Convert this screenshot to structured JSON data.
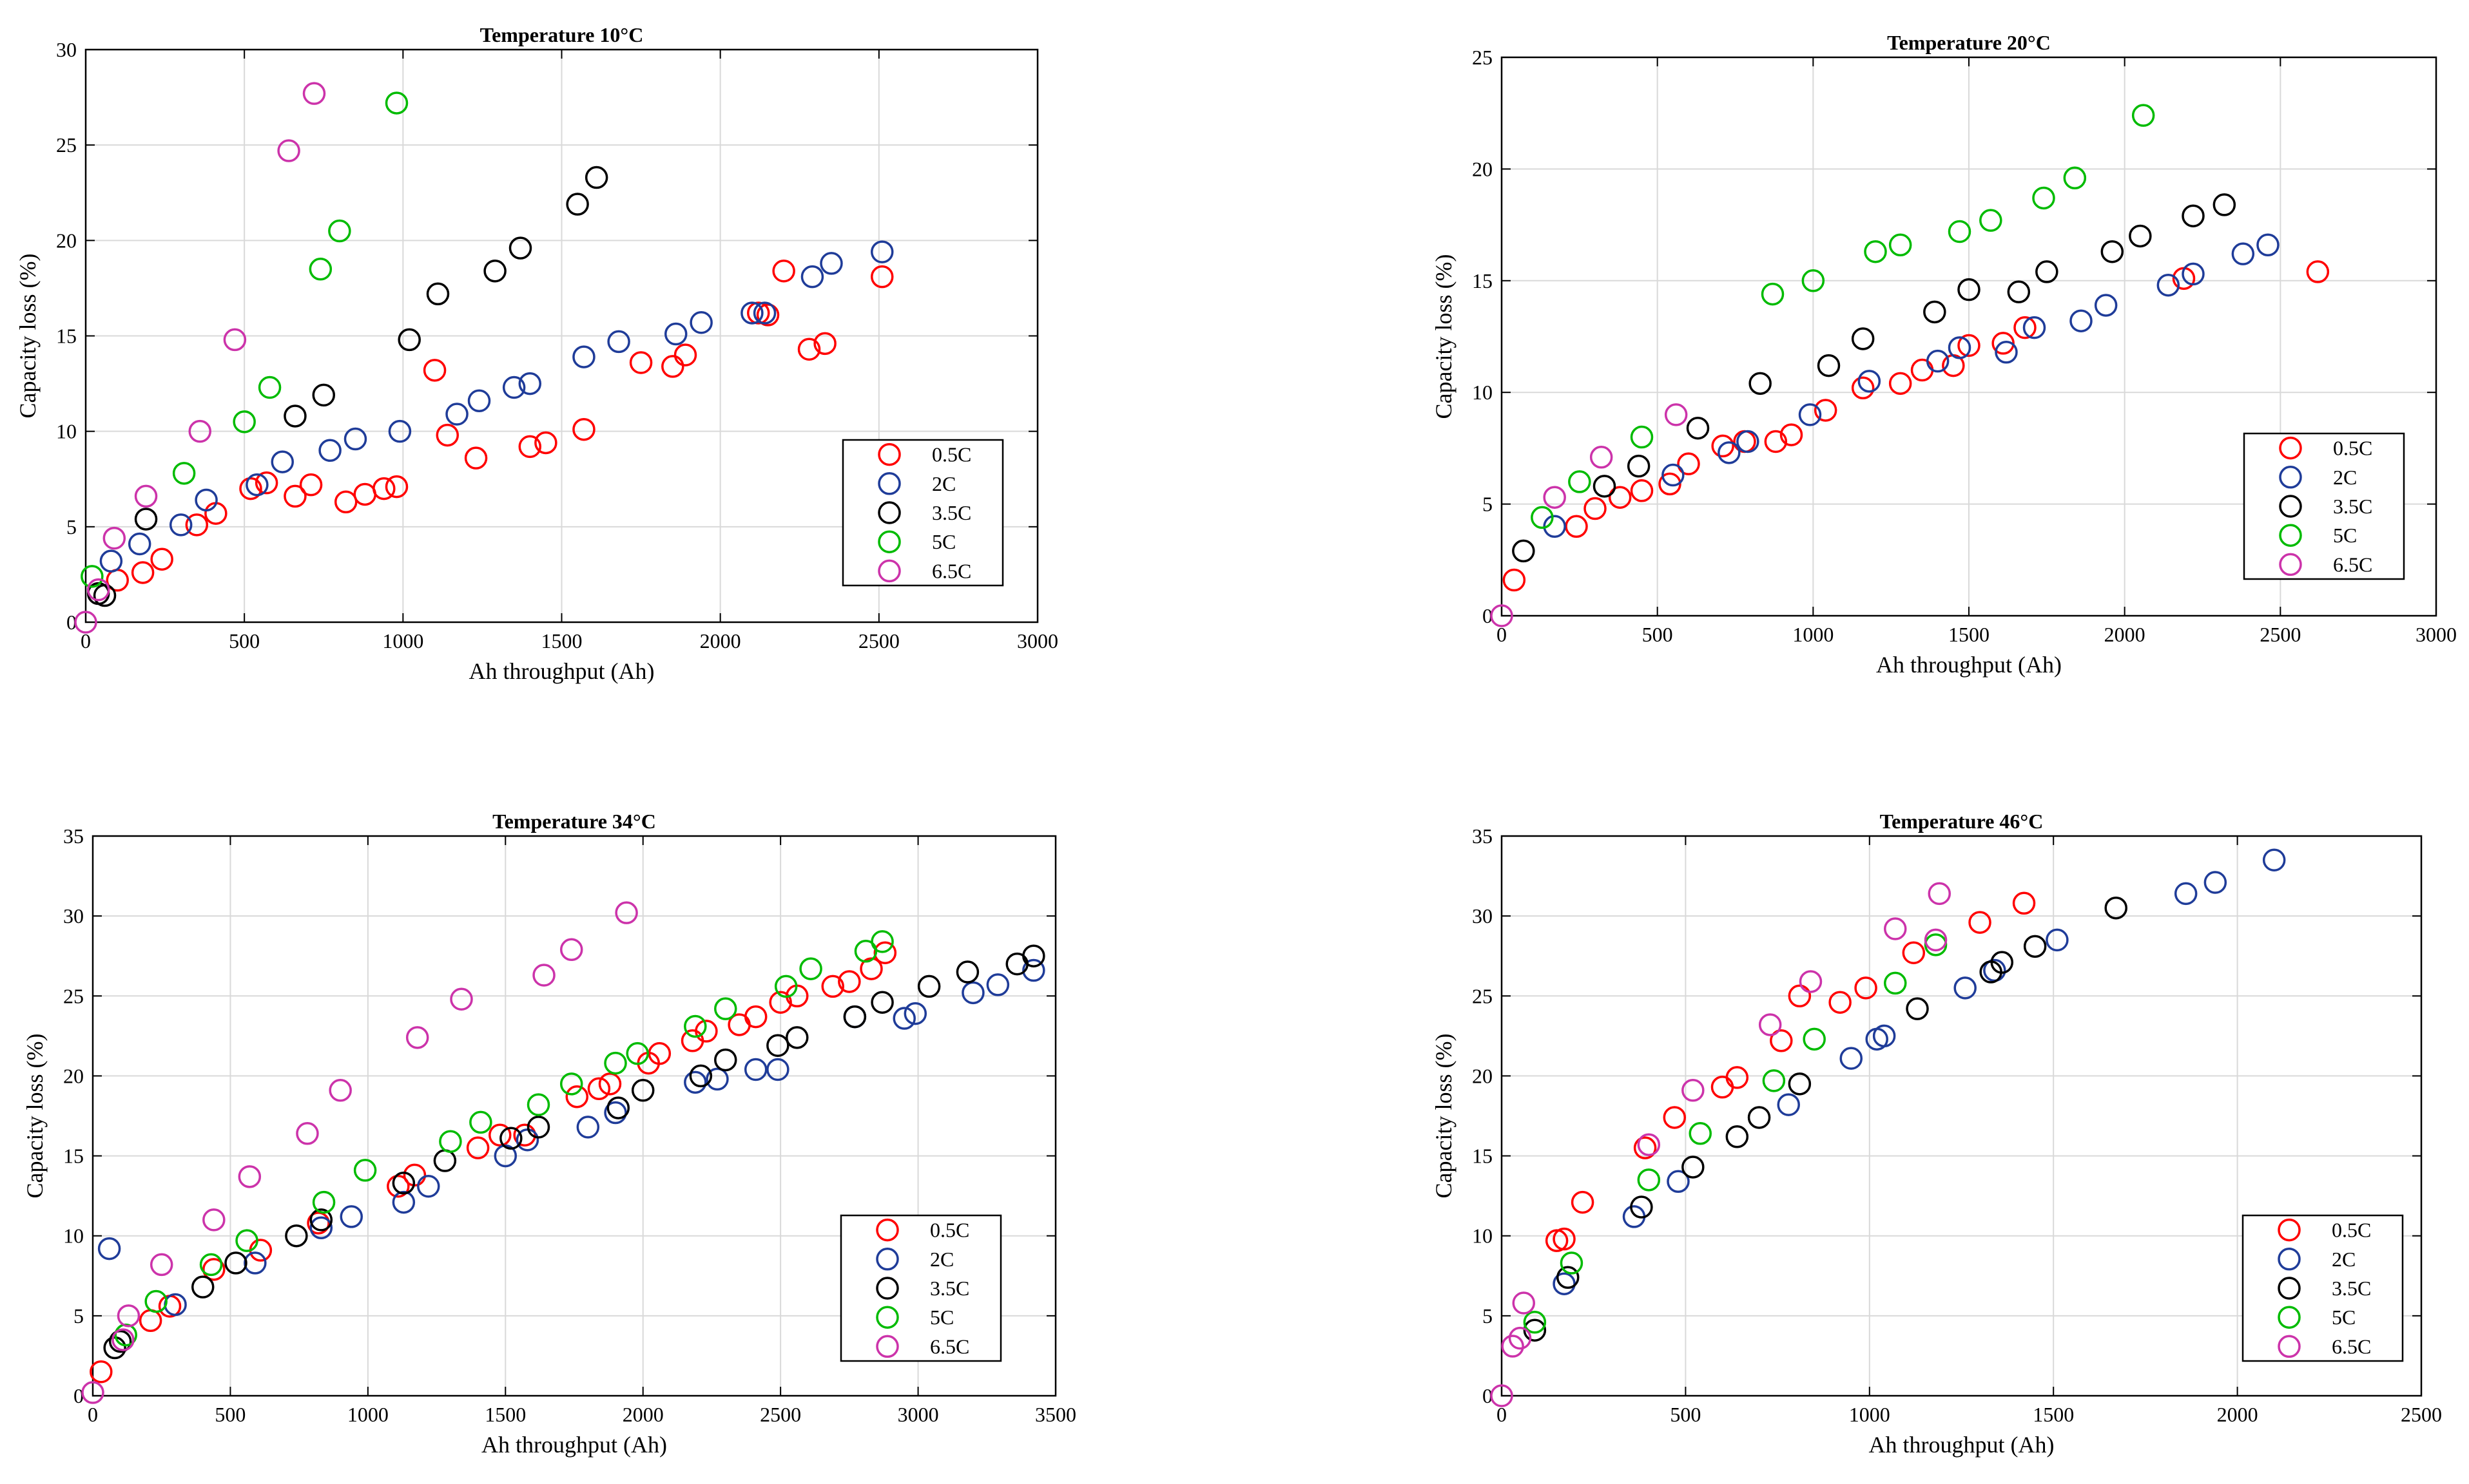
{
  "chart_data": [
    {
      "type": "scatter",
      "title": "Temperature 10°C",
      "xlabel": "Ah throughput (Ah)",
      "ylabel": "Capacity loss (%)",
      "xlim": [
        0,
        3000
      ],
      "ylim": [
        0,
        30
      ],
      "xticks": [
        0,
        500,
        1000,
        1500,
        2000,
        2500,
        3000
      ],
      "yticks": [
        0,
        5,
        10,
        15,
        20,
        25,
        30
      ],
      "grid": true,
      "legend_position": "bottom-right",
      "series": [
        {
          "name": "0.5C",
          "color": "#ff0000",
          "x": [
            100,
            180,
            240,
            350,
            410,
            520,
            570,
            660,
            710,
            820,
            880,
            940,
            980,
            1100,
            1140,
            1230,
            1400,
            1450,
            1570,
            1750,
            1850,
            1890,
            2120,
            2150,
            2200,
            2280,
            2330,
            2510
          ],
          "y": [
            2.2,
            2.6,
            3.3,
            5.1,
            5.7,
            7.0,
            7.3,
            6.6,
            7.2,
            6.3,
            6.7,
            7.0,
            7.1,
            13.2,
            9.8,
            8.6,
            9.2,
            9.4,
            10.1,
            13.6,
            13.4,
            14.0,
            16.2,
            16.1,
            18.4,
            14.3,
            14.6,
            18.1
          ]
        },
        {
          "name": "2C",
          "color": "#1f3c99",
          "x": [
            80,
            170,
            300,
            380,
            540,
            620,
            770,
            850,
            990,
            1170,
            1240,
            1350,
            1400,
            1570,
            1680,
            1860,
            1940,
            2100,
            2140,
            2290,
            2350,
            2510
          ],
          "y": [
            3.2,
            4.1,
            5.1,
            6.4,
            7.2,
            8.4,
            9.0,
            9.6,
            10.0,
            10.9,
            11.6,
            12.3,
            12.5,
            13.9,
            14.7,
            15.1,
            15.7,
            16.2,
            16.2,
            18.1,
            18.8,
            19.4
          ]
        },
        {
          "name": "3.5C",
          "color": "#000000",
          "x": [
            40,
            60,
            190,
            660,
            750,
            1020,
            1110,
            1290,
            1370,
            1550,
            1610
          ],
          "y": [
            1.5,
            1.4,
            5.4,
            10.8,
            11.9,
            14.8,
            17.2,
            18.4,
            19.6,
            21.9,
            23.3
          ]
        },
        {
          "name": "5C",
          "color": "#00bb00",
          "x": [
            20,
            310,
            500,
            580,
            740,
            800,
            980
          ],
          "y": [
            2.4,
            7.8,
            10.5,
            12.3,
            18.5,
            20.5,
            27.2
          ]
        },
        {
          "name": "6.5C",
          "color": "#cc33aa",
          "x": [
            0,
            40,
            90,
            190,
            360,
            470,
            640,
            720
          ],
          "y": [
            0.0,
            1.7,
            4.4,
            6.6,
            10.0,
            14.8,
            24.7,
            27.7
          ]
        }
      ]
    },
    {
      "type": "scatter",
      "title": "Temperature 20°C",
      "xlabel": "Ah throughput (Ah)",
      "ylabel": "Capacity loss (%)",
      "xlim": [
        0,
        3000
      ],
      "ylim": [
        0,
        25
      ],
      "xticks": [
        0,
        500,
        1000,
        1500,
        2000,
        2500,
        3000
      ],
      "yticks": [
        0,
        5,
        10,
        15,
        20,
        25
      ],
      "grid": true,
      "legend_position": "bottom-right",
      "series": [
        {
          "name": "0.5C",
          "color": "#ff0000",
          "x": [
            40,
            240,
            300,
            380,
            450,
            540,
            600,
            710,
            780,
            880,
            930,
            1040,
            1160,
            1280,
            1350,
            1450,
            1500,
            1610,
            1680,
            2190,
            2620
          ],
          "y": [
            1.6,
            4.0,
            4.8,
            5.3,
            5.6,
            5.9,
            6.8,
            7.6,
            7.8,
            7.8,
            8.1,
            9.2,
            10.2,
            10.4,
            11.0,
            11.2,
            12.1,
            12.2,
            12.9,
            15.1,
            15.4
          ]
        },
        {
          "name": "2C",
          "color": "#1f3c99",
          "x": [
            170,
            550,
            730,
            790,
            990,
            1180,
            1400,
            1470,
            1620,
            1710,
            1860,
            1940,
            2140,
            2220,
            2380,
            2460
          ],
          "y": [
            4.0,
            6.3,
            7.3,
            7.8,
            9.0,
            10.5,
            11.4,
            12.0,
            11.8,
            12.9,
            13.2,
            13.9,
            14.8,
            15.3,
            16.2,
            16.6
          ]
        },
        {
          "name": "3.5C",
          "color": "#000000",
          "x": [
            70,
            330,
            440,
            630,
            830,
            1050,
            1160,
            1390,
            1500,
            1660,
            1750,
            1960,
            2050,
            2220,
            2320
          ],
          "y": [
            2.9,
            5.8,
            6.7,
            8.4,
            10.4,
            11.2,
            12.4,
            13.6,
            14.6,
            14.5,
            15.4,
            16.3,
            17.0,
            17.9,
            18.4
          ]
        },
        {
          "name": "5C",
          "color": "#00bb00",
          "x": [
            130,
            250,
            450,
            870,
            1000,
            1200,
            1280,
            1470,
            1570,
            1740,
            1840,
            2060
          ],
          "y": [
            4.4,
            6.0,
            8.0,
            14.4,
            15.0,
            16.3,
            16.6,
            17.2,
            17.7,
            18.7,
            19.6,
            22.4
          ]
        },
        {
          "name": "6.5C",
          "color": "#cc33aa",
          "x": [
            0,
            170,
            320,
            560
          ],
          "y": [
            0.0,
            5.3,
            7.1,
            9.0
          ]
        }
      ]
    },
    {
      "type": "scatter",
      "title": "Temperature 34°C",
      "xlabel": "Ah throughput (Ah)",
      "ylabel": "Capacity loss (%)",
      "xlim": [
        0,
        3500
      ],
      "ylim": [
        0,
        35
      ],
      "xticks": [
        0,
        500,
        1000,
        1500,
        2000,
        2500,
        3000,
        3500
      ],
      "yticks": [
        0,
        5,
        10,
        15,
        20,
        25,
        30,
        35
      ],
      "grid": true,
      "legend_position": "bottom-right",
      "series": [
        {
          "name": "0.5C",
          "color": "#ff0000",
          "x": [
            30,
            210,
            280,
            440,
            610,
            820,
            1110,
            1170,
            1400,
            1480,
            1570,
            1760,
            1840,
            1880,
            2020,
            2060,
            2180,
            2230,
            2350,
            2410,
            2500,
            2560,
            2690,
            2750,
            2830,
            2880
          ],
          "y": [
            1.5,
            4.7,
            5.6,
            7.9,
            9.1,
            10.8,
            13.1,
            13.8,
            15.5,
            16.3,
            16.3,
            18.7,
            19.2,
            19.5,
            20.8,
            21.4,
            22.2,
            22.8,
            23.2,
            23.7,
            24.6,
            25.0,
            25.6,
            25.9,
            26.7,
            27.7
          ]
        },
        {
          "name": "2C",
          "color": "#1f3c99",
          "x": [
            60,
            300,
            590,
            830,
            940,
            1130,
            1220,
            1500,
            1580,
            1800,
            1900,
            2190,
            2270,
            2410,
            2490,
            2770,
            2950,
            2990,
            3200,
            3290,
            3420
          ],
          "y": [
            9.2,
            5.7,
            8.3,
            10.5,
            11.2,
            12.1,
            13.1,
            15.0,
            16.0,
            16.8,
            17.7,
            19.6,
            19.8,
            20.4,
            20.4,
            23.7,
            23.6,
            23.9,
            25.2,
            25.7,
            26.6
          ]
        },
        {
          "name": "3.5C",
          "color": "#000000",
          "x": [
            80,
            100,
            400,
            520,
            740,
            830,
            1130,
            1280,
            1520,
            1620,
            1910,
            2000,
            2210,
            2300,
            2490,
            2560,
            2770,
            2870,
            3040,
            3180,
            3360,
            3420
          ],
          "y": [
            3.0,
            3.4,
            6.8,
            8.3,
            10.0,
            11.0,
            13.3,
            14.7,
            16.1,
            16.8,
            18.0,
            19.1,
            20.0,
            21.0,
            21.9,
            22.4,
            23.7,
            24.6,
            25.6,
            26.5,
            27.0,
            27.5
          ]
        },
        {
          "name": "5C",
          "color": "#00bb00",
          "x": [
            120,
            230,
            430,
            560,
            840,
            990,
            1300,
            1410,
            1620,
            1740,
            1900,
            1980,
            2190,
            2300,
            2520,
            2610,
            2810,
            2870
          ],
          "y": [
            3.8,
            5.9,
            8.2,
            9.7,
            12.1,
            14.1,
            15.9,
            17.1,
            18.2,
            19.5,
            20.8,
            21.4,
            23.1,
            24.2,
            25.6,
            26.7,
            27.8,
            28.4
          ]
        },
        {
          "name": "6.5C",
          "color": "#cc33aa",
          "x": [
            0,
            110,
            130,
            250,
            440,
            570,
            780,
            900,
            1180,
            1340,
            1640,
            1740,
            1940
          ],
          "y": [
            0.2,
            3.5,
            5.0,
            8.2,
            11.0,
            13.7,
            16.4,
            19.1,
            22.4,
            24.8,
            26.3,
            27.9,
            30.2
          ]
        }
      ]
    },
    {
      "type": "scatter",
      "title": "Temperature 46°C",
      "xlabel": "Ah throughput (Ah)",
      "ylabel": "Capacity loss (%)",
      "xlim": [
        0,
        2500
      ],
      "ylim": [
        0,
        35
      ],
      "xticks": [
        0,
        500,
        1000,
        1500,
        2000,
        2500
      ],
      "yticks": [
        0,
        5,
        10,
        15,
        20,
        25,
        30,
        35
      ],
      "grid": true,
      "legend_position": "bottom-right",
      "series": [
        {
          "name": "0.5C",
          "color": "#ff0000",
          "x": [
            150,
            170,
            220,
            390,
            470,
            600,
            640,
            760,
            810,
            920,
            990,
            1120,
            1300,
            1420
          ],
          "y": [
            9.7,
            9.8,
            12.1,
            15.5,
            17.4,
            19.3,
            19.9,
            22.2,
            25.0,
            24.6,
            25.5,
            27.7,
            29.6,
            30.8
          ]
        },
        {
          "name": "2C",
          "color": "#1f3c99",
          "x": [
            170,
            360,
            480,
            780,
            950,
            1020,
            1040,
            1260,
            1340,
            1510,
            1860,
            1940,
            2100
          ],
          "y": [
            7.0,
            11.2,
            13.4,
            18.2,
            21.1,
            22.3,
            22.5,
            25.5,
            26.6,
            28.5,
            31.4,
            32.1,
            33.5
          ]
        },
        {
          "name": "3.5C",
          "color": "#000000",
          "x": [
            90,
            180,
            380,
            520,
            640,
            700,
            810,
            1130,
            1330,
            1360,
            1450,
            1670
          ],
          "y": [
            4.1,
            7.4,
            11.8,
            14.3,
            16.2,
            17.4,
            19.5,
            24.2,
            26.5,
            27.1,
            28.1,
            30.5
          ]
        },
        {
          "name": "5C",
          "color": "#00bb00",
          "x": [
            90,
            190,
            400,
            540,
            740,
            850,
            1070,
            1180
          ],
          "y": [
            4.6,
            8.3,
            13.5,
            16.4,
            19.7,
            22.3,
            25.8,
            28.2
          ]
        },
        {
          "name": "6.5C",
          "color": "#cc33aa",
          "x": [
            0,
            30,
            50,
            60,
            400,
            520,
            730,
            840,
            1070,
            1180,
            1190
          ],
          "y": [
            0.0,
            3.1,
            3.6,
            5.8,
            15.7,
            19.1,
            23.2,
            25.9,
            29.2,
            28.5,
            31.4
          ]
        }
      ]
    }
  ]
}
